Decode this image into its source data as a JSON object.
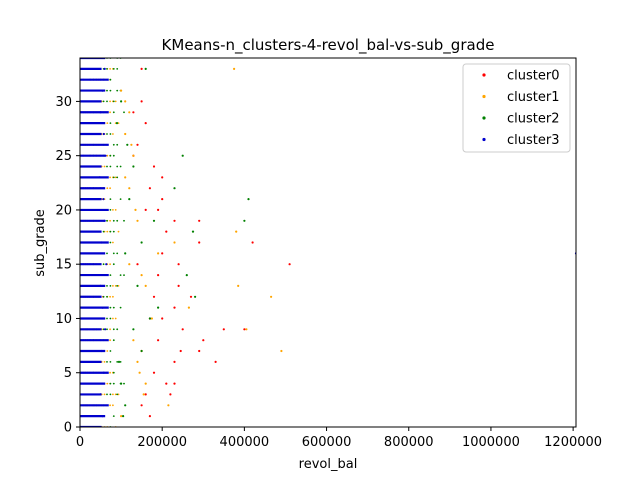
{
  "chart_data": {
    "type": "scatter",
    "title": "KMeans-n_clusters-4-revol_bal-vs-sub_grade",
    "xlabel": "revol_bal",
    "ylabel": "sub_grade",
    "xlim": [
      0,
      1207000
    ],
    "ylim": [
      0,
      34
    ],
    "xticks": [
      0,
      200000,
      400000,
      600000,
      800000,
      1000000,
      1200000
    ],
    "xtick_labels": [
      "0",
      "200000",
      "400000",
      "600000",
      "800000",
      "1000000",
      "1200000"
    ],
    "yticks": [
      0,
      5,
      10,
      15,
      20,
      25,
      30
    ],
    "ytick_labels": [
      "0",
      "5",
      "10",
      "15",
      "20",
      "25",
      "30"
    ],
    "grid": false,
    "legend_position": "top-right",
    "series": [
      {
        "name": "cluster0",
        "color": "#ff0000",
        "points": [
          [
            350000,
            9
          ],
          [
            400000,
            9
          ],
          [
            290000,
            7
          ],
          [
            245000,
            7
          ],
          [
            210000,
            4
          ],
          [
            230000,
            4
          ],
          [
            330000,
            6
          ],
          [
            290000,
            19
          ],
          [
            290000,
            17
          ],
          [
            190000,
            20
          ],
          [
            230000,
            19
          ],
          [
            420000,
            17
          ],
          [
            510000,
            15
          ],
          [
            170000,
            22
          ],
          [
            200000,
            16
          ],
          [
            240000,
            15
          ],
          [
            190000,
            14
          ],
          [
            270000,
            12
          ],
          [
            240000,
            13
          ],
          [
            200000,
            10
          ],
          [
            250000,
            9
          ],
          [
            300000,
            8
          ],
          [
            190000,
            8
          ],
          [
            230000,
            6
          ],
          [
            180000,
            5
          ],
          [
            220000,
            3
          ],
          [
            150000,
            2
          ],
          [
            170000,
            1
          ],
          [
            180000,
            24
          ],
          [
            200000,
            23
          ],
          [
            140000,
            26
          ],
          [
            160000,
            28
          ],
          [
            130000,
            29
          ],
          [
            150000,
            30
          ],
          [
            200000,
            21
          ],
          [
            230000,
            11
          ],
          [
            160000,
            3
          ],
          [
            180000,
            12
          ],
          [
            210000,
            18
          ],
          [
            150000,
            7
          ],
          [
            170000,
            10
          ],
          [
            130000,
            25
          ],
          [
            160000,
            20
          ],
          [
            140000,
            15
          ],
          [
            150000,
            33
          ]
        ]
      },
      {
        "name": "cluster1",
        "color": "#ffa500",
        "points": [
          [
            375000,
            33
          ],
          [
            490000,
            7
          ],
          [
            465000,
            12
          ],
          [
            385000,
            13
          ],
          [
            380000,
            18
          ],
          [
            405000,
            9
          ],
          [
            265000,
            11
          ],
          [
            230000,
            17
          ],
          [
            190000,
            16
          ],
          [
            160000,
            13
          ],
          [
            175000,
            10
          ],
          [
            150000,
            7
          ],
          [
            145000,
            5
          ],
          [
            155000,
            3
          ],
          [
            215000,
            2
          ],
          [
            120000,
            29
          ],
          [
            110000,
            27
          ],
          [
            130000,
            25
          ],
          [
            120000,
            22
          ],
          [
            140000,
            19
          ],
          [
            100000,
            31
          ],
          [
            110000,
            30
          ],
          [
            150000,
            14
          ],
          [
            130000,
            8
          ],
          [
            140000,
            6
          ],
          [
            160000,
            4
          ],
          [
            100000,
            1
          ],
          [
            120000,
            15
          ],
          [
            135000,
            20
          ],
          [
            110000,
            23
          ],
          [
            125000,
            26
          ]
        ]
      },
      {
        "name": "cluster2",
        "color": "#008000",
        "points": [
          [
            410000,
            21
          ],
          [
            400000,
            19
          ],
          [
            250000,
            25
          ],
          [
            280000,
            12
          ],
          [
            275000,
            18
          ],
          [
            260000,
            14
          ],
          [
            230000,
            22
          ],
          [
            170000,
            10
          ],
          [
            190000,
            11
          ],
          [
            150000,
            7
          ],
          [
            180000,
            19
          ],
          [
            130000,
            24
          ],
          [
            160000,
            33
          ],
          [
            110000,
            16
          ],
          [
            140000,
            13
          ],
          [
            130000,
            9
          ],
          [
            100000,
            4
          ],
          [
            110000,
            2
          ],
          [
            90000,
            28
          ],
          [
            100000,
            30
          ],
          [
            120000,
            21
          ],
          [
            150000,
            17
          ],
          [
            95000,
            6
          ],
          [
            105000,
            1
          ],
          [
            115000,
            26
          ]
        ]
      },
      {
        "name": "cluster3",
        "color": "#0000cd",
        "points": [
          [
            1207000,
            16
          ],
          [
            60000,
            33
          ],
          [
            55000,
            31
          ],
          [
            50000,
            29
          ],
          [
            58000,
            27
          ],
          [
            62000,
            25
          ],
          [
            48000,
            23
          ],
          [
            57000,
            21
          ],
          [
            60000,
            19
          ],
          [
            52000,
            17
          ],
          [
            64000,
            15
          ],
          [
            50000,
            13
          ],
          [
            55000,
            11
          ],
          [
            61000,
            9
          ],
          [
            53000,
            7
          ],
          [
            58000,
            5
          ],
          [
            50000,
            3
          ],
          [
            55000,
            1
          ]
        ]
      }
    ]
  }
}
